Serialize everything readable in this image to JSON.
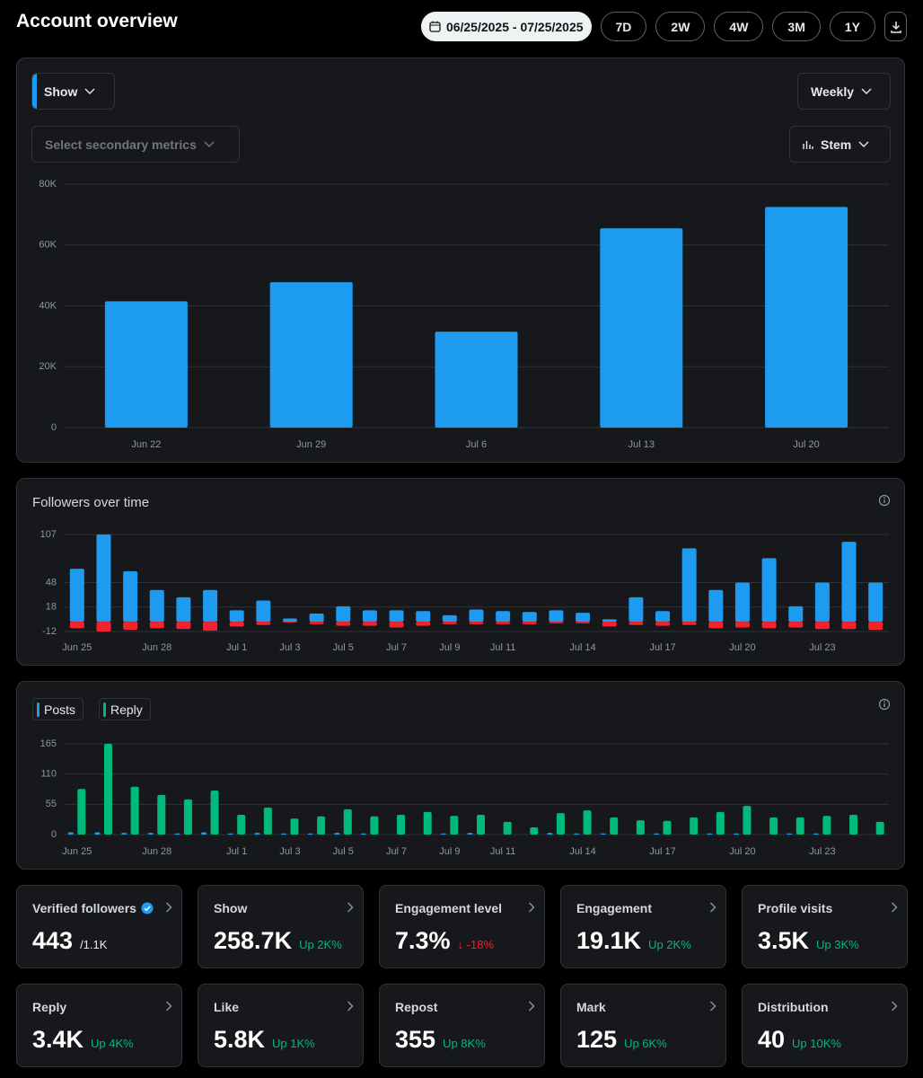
{
  "header": {
    "title": "Account overview",
    "date_range": "06/25/2025 - 07/25/2025",
    "ranges": [
      "7D",
      "2W",
      "4W",
      "3M",
      "1Y"
    ]
  },
  "controls": {
    "metric": "Show",
    "interval": "Weekly",
    "secondary": "Select secondary metrics",
    "style": "Stem"
  },
  "charts": [
    {
      "type": "bar",
      "categories": [
        "Jun 22",
        "Jun 29",
        "Jul 6",
        "Jul 13",
        "Jul 20"
      ],
      "values": [
        41500,
        47800,
        31500,
        65500,
        72500
      ],
      "color": "#1d9bf0",
      "ylim": [
        0,
        80000
      ],
      "yticks": [
        0,
        {
          "value": 20000,
          "label": "20K"
        },
        {
          "value": 40000,
          "label": "40K"
        },
        {
          "value": 60000,
          "label": "60K"
        },
        {
          "value": 80000,
          "label": "80K"
        }
      ],
      "grid": true
    },
    {
      "type": "bar",
      "title": "Followers over time",
      "stacked": true,
      "categories": [
        "Jun 25",
        null,
        null,
        "Jun 28",
        null,
        null,
        "Jul 1",
        null,
        "Jul 3",
        null,
        "Jul 5",
        null,
        "Jul 7",
        null,
        "Jul 9",
        null,
        "Jul 11",
        null,
        null,
        "Jul 14",
        null,
        null,
        "Jul 17",
        null,
        null,
        "Jul 20",
        null,
        null,
        "Jul 23",
        null,
        null
      ],
      "series": [
        {
          "color": "#1d9bf0",
          "values": [
            65,
            107,
            62,
            39,
            30,
            39,
            14,
            26,
            4,
            10,
            19,
            14,
            14,
            13,
            8,
            15,
            13,
            12,
            14,
            11,
            3,
            30,
            13,
            90,
            39,
            48,
            78,
            19,
            48,
            98,
            48
          ]
        },
        {
          "color": "#f4212e",
          "values": [
            -8,
            -12,
            -10,
            -8,
            -9,
            -11,
            -6,
            -4,
            -1,
            -3,
            -5,
            -5,
            -7,
            -5,
            -3,
            -3,
            -3,
            -3,
            -2,
            -2,
            -6,
            -4,
            -5,
            -4,
            -8,
            -7,
            -8,
            -7,
            -9,
            -9,
            -10
          ]
        }
      ],
      "ylim": [
        -12,
        107
      ],
      "yticks": [
        -12,
        18,
        48,
        107
      ],
      "grid": true
    },
    {
      "type": "bar",
      "categories": [
        "Jun 25",
        null,
        null,
        "Jun 28",
        null,
        null,
        "Jul 1",
        null,
        "Jul 3",
        null,
        "Jul 5",
        null,
        "Jul 7",
        null,
        "Jul 9",
        null,
        "Jul 11",
        null,
        null,
        "Jul 14",
        null,
        null,
        "Jul 17",
        null,
        null,
        "Jul 20",
        null,
        null,
        "Jul 23",
        null,
        null
      ],
      "series": [
        {
          "name": "Posts",
          "color": "#1d9bf0",
          "values": [
            4,
            4,
            3,
            3,
            2,
            4,
            2,
            3,
            2,
            2,
            3,
            2,
            0,
            0,
            2,
            3,
            0,
            0,
            3,
            2,
            2,
            0,
            2,
            0,
            2,
            2,
            0,
            2,
            2,
            0,
            0
          ]
        },
        {
          "name": "Reply",
          "color": "#00ba7c",
          "values": [
            83,
            165,
            87,
            72,
            64,
            80,
            36,
            49,
            29,
            33,
            46,
            33,
            36,
            41,
            34,
            36,
            23,
            13,
            39,
            44,
            31,
            26,
            25,
            31,
            41,
            52,
            31,
            31,
            34,
            36,
            23
          ]
        }
      ],
      "ylim": [
        0,
        165
      ],
      "yticks": [
        0,
        55,
        110,
        165
      ],
      "grid": true
    }
  ],
  "cards": [
    {
      "label": "Verified followers",
      "value": "443",
      "sub": "/1.1K",
      "verified": true
    },
    {
      "label": "Show",
      "value": "258.7K",
      "change": "Up 2K%",
      "change_color": "#00ba7c"
    },
    {
      "label": "Engagement level",
      "value": "7.3%",
      "change": "↓ -18%",
      "change_color": "#f4212e"
    },
    {
      "label": "Engagement",
      "value": "19.1K",
      "change": "Up 2K%",
      "change_color": "#00ba7c"
    },
    {
      "label": "Profile visits",
      "value": "3.5K",
      "change": "Up 3K%",
      "change_color": "#00ba7c"
    },
    {
      "label": "Reply",
      "value": "3.4K",
      "change": "Up 4K%",
      "change_color": "#00ba7c"
    },
    {
      "label": "Like",
      "value": "5.8K",
      "change": "Up 1K%",
      "change_color": "#00ba7c"
    },
    {
      "label": "Repost",
      "value": "355",
      "change": "Up 8K%",
      "change_color": "#00ba7c"
    },
    {
      "label": "Mark",
      "value": "125",
      "change": "Up 6K%",
      "change_color": "#00ba7c"
    },
    {
      "label": "Distribution",
      "value": "40",
      "change": "Up 10K%",
      "change_color": "#00ba7c"
    }
  ]
}
